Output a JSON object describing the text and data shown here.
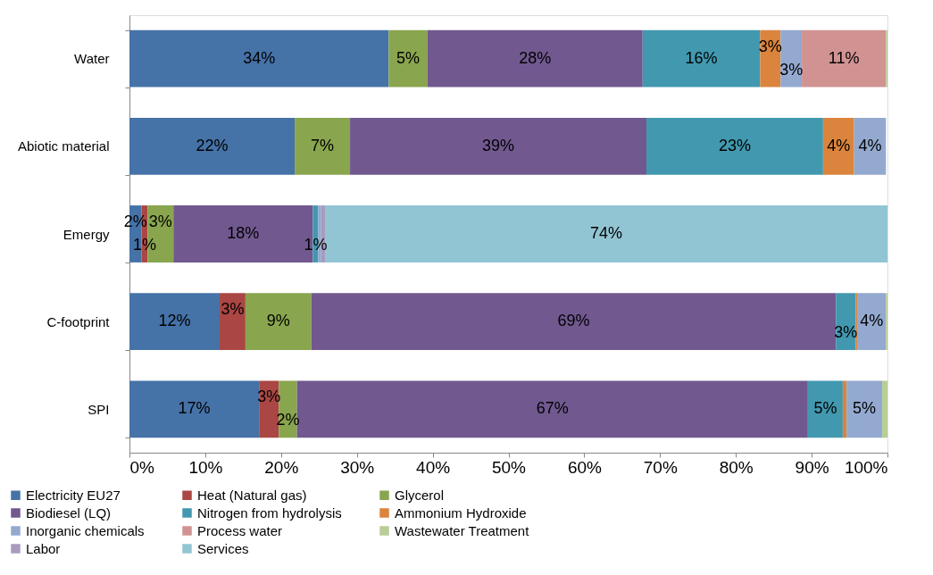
{
  "chart_data": {
    "type": "bar",
    "orientation": "horizontal",
    "stacked": true,
    "legend": "bottom",
    "grid": false,
    "categories": [
      "Water",
      "Abiotic material",
      "Emergy",
      "C-footprint",
      "SPI"
    ],
    "xlim": [
      0,
      100
    ],
    "xticks": [
      {
        "value": 0,
        "label": "0%"
      },
      {
        "value": 10,
        "label": "10%"
      },
      {
        "value": 20,
        "label": "20%"
      },
      {
        "value": 30,
        "label": "30%"
      },
      {
        "value": 40,
        "label": "40%"
      },
      {
        "value": 50,
        "label": "50%"
      },
      {
        "value": 60,
        "label": "60%"
      },
      {
        "value": 70,
        "label": "70%"
      },
      {
        "value": 80,
        "label": "80%"
      },
      {
        "value": 90,
        "label": "90%"
      },
      {
        "value": 100,
        "label": "100%"
      }
    ],
    "series": [
      {
        "name": "Electricity EU27",
        "color": "#4572a7",
        "values": [
          34.2,
          21.8,
          1.6,
          11.9,
          17.1
        ],
        "value_labels": [
          "34%",
          "22%",
          "2%",
          "12%",
          "17%"
        ]
      },
      {
        "name": "Heat (Natural gas)",
        "color": "#aa4643",
        "values": [
          null,
          null,
          0.8,
          3.4,
          2.6
        ],
        "value_labels": [
          null,
          null,
          "1%",
          "3%",
          "3%"
        ]
      },
      {
        "name": "Glycerol",
        "color": "#89a54e",
        "values": [
          5.1,
          7.3,
          3.4,
          8.7,
          2.4
        ],
        "value_labels": [
          "5%",
          "7%",
          "3%",
          "9%",
          "2%"
        ]
      },
      {
        "name": "Biodiesel (LQ)",
        "color": "#71588f",
        "values": [
          28.4,
          39.1,
          18.4,
          69.2,
          67.4
        ],
        "value_labels": [
          "28%",
          "39%",
          "18%",
          "69%",
          "67%"
        ]
      },
      {
        "name": "Nitrogen from hydrolysis",
        "color": "#4198af",
        "values": [
          15.5,
          23.3,
          0.7,
          2.6,
          4.6
        ],
        "value_labels": [
          "16%",
          "23%",
          "1%",
          "3%",
          "5%"
        ]
      },
      {
        "name": "Ammonium Hydroxide",
        "color": "#db843d",
        "values": [
          2.7,
          4.1,
          null,
          0.2,
          0.5
        ],
        "value_labels": [
          "3%",
          "4%",
          null,
          null,
          null
        ]
      },
      {
        "name": "Inorganic chemicals",
        "color": "#93a9cf",
        "values": [
          2.8,
          4.2,
          0.4,
          3.8,
          4.7
        ],
        "value_labels": [
          "3%",
          "4%",
          null,
          "4%",
          "5%"
        ]
      },
      {
        "name": "Process water",
        "color": "#d19392",
        "values": [
          11.1,
          null,
          null,
          null,
          null
        ],
        "value_labels": [
          "11%",
          null,
          null,
          null,
          null
        ]
      },
      {
        "name": "Wastewater Treatment",
        "color": "#b9cd96",
        "values": [
          0.2,
          null,
          null,
          0.2,
          0.7
        ],
        "value_labels": [
          null,
          null,
          null,
          null,
          null
        ]
      },
      {
        "name": "Labor",
        "color": "#a99bbd",
        "values": [
          null,
          null,
          0.5,
          null,
          null
        ],
        "value_labels": [
          null,
          null,
          null,
          null,
          null
        ]
      },
      {
        "name": "Services",
        "color": "#92c5d4",
        "values": [
          null,
          null,
          74.2,
          null,
          null
        ],
        "value_labels": [
          null,
          null,
          "74%",
          null,
          null
        ]
      }
    ]
  }
}
